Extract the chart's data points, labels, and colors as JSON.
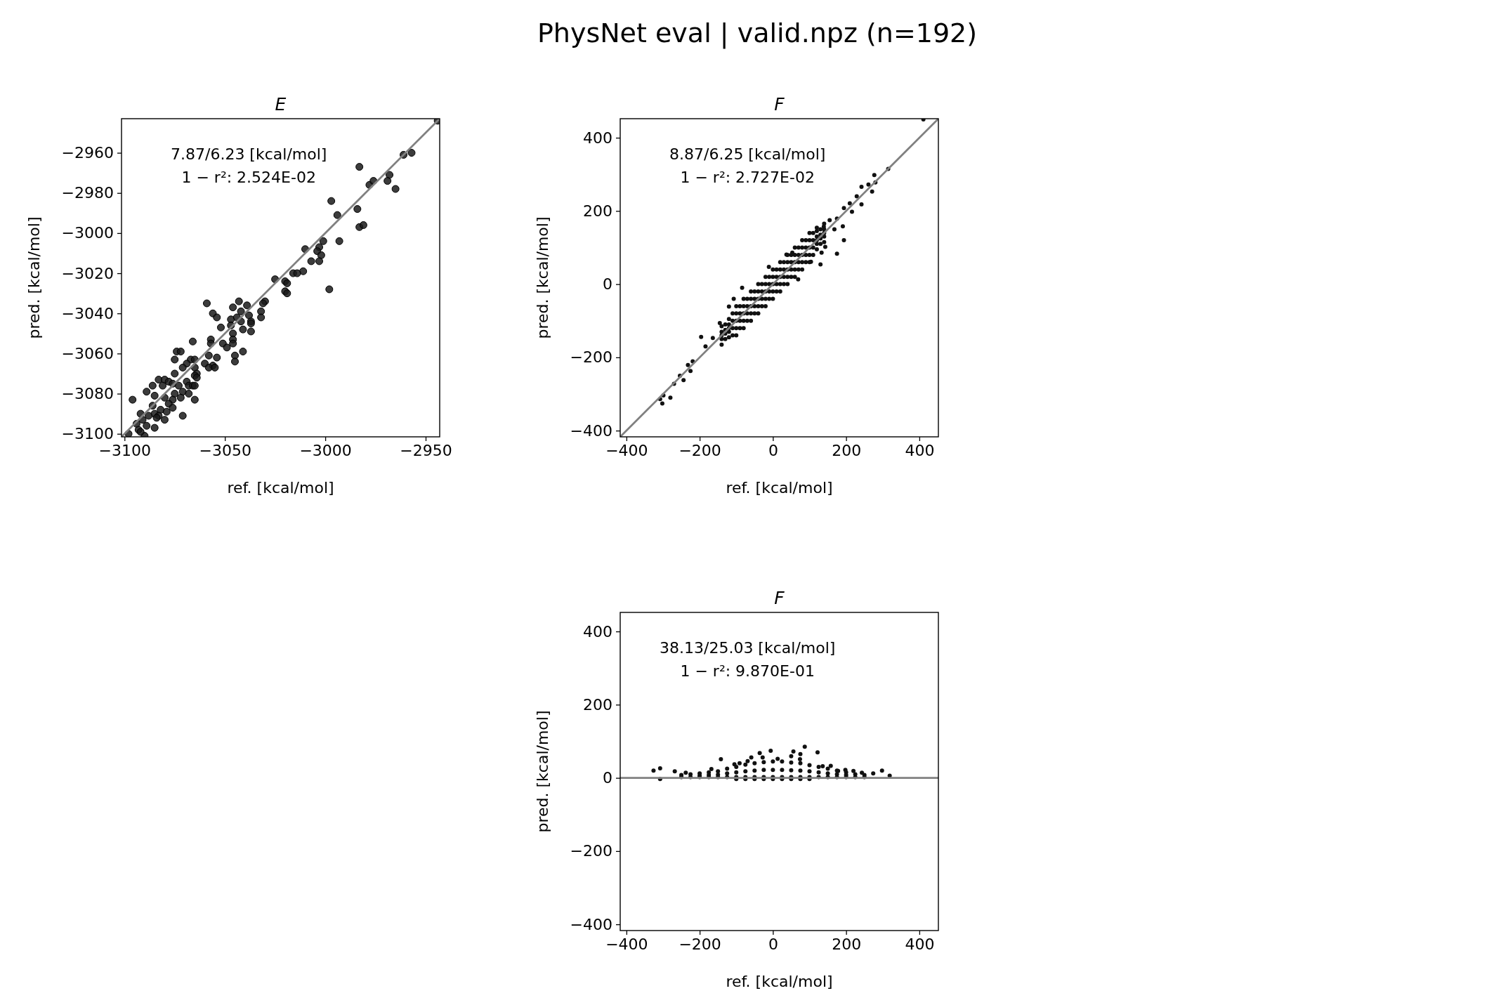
{
  "chart_data": [
    {
      "type": "scatter",
      "title": "E",
      "xlabel": "ref. [kcal/mol]",
      "ylabel": "pred. [kcal/mol]",
      "marker": "circle",
      "annotations": [
        "PhysNet eval | valid.npz (n=192)",
        "7.87/6.23 [kcal/mol]",
        "1 − r²: 2.524E-02"
      ],
      "xlim": [
        -3101.5,
        -2943
      ],
      "ylim": [
        -3101.5,
        -2943
      ],
      "xticks": [
        -3100,
        -3050,
        -3000,
        -2950
      ],
      "yticks": [
        -3100,
        -3080,
        -3060,
        -3040,
        -3020,
        -3000,
        -2980,
        -2960
      ],
      "series": [
        {
          "color": "#1a1a1a",
          "x": [
            -2944,
            -2961,
            -2957,
            -2983,
            -2968,
            -2969,
            -2978,
            -2976,
            -2965,
            -2997,
            -2984,
            -2994,
            -2983,
            -2981,
            -3001,
            -2993,
            -3010,
            -3003,
            -3004,
            -3002,
            -3007,
            -3003,
            -3011,
            -3016,
            -3014,
            -3025,
            -3020,
            -3019,
            -3020,
            -3019,
            -2998,
            -3059,
            -3043,
            -3039,
            -3030,
            -3031,
            -3046,
            -3032,
            -3042,
            -3056,
            -3054,
            -3038,
            -3032,
            -3047,
            -3044,
            -3037,
            -3037,
            -3047,
            -3042,
            -3052,
            -3041,
            -3046,
            -3037,
            -3057,
            -3046,
            -3066,
            -3051,
            -3049,
            -3046,
            -3057,
            -3041,
            -3045,
            -3074,
            -3072,
            -3058,
            -3054,
            -3075,
            -3045,
            -3067,
            -3065,
            -3069,
            -3060,
            -3056,
            -3058,
            -3055,
            -3071,
            -3065,
            -3075,
            -3064,
            -3065,
            -3064,
            -3083,
            -3080,
            -3078,
            -3069,
            -3076,
            -3068,
            -3086,
            -3081,
            -3073,
            -3066,
            -3065,
            -3071,
            -3089,
            -3085,
            -3075,
            -3068,
            -3072,
            -3065,
            -3096,
            -3080,
            -3076,
            -3078,
            -3076,
            -3086,
            -3082,
            -3085,
            -3092,
            -3079,
            -3088,
            -3083,
            -3071,
            -3091,
            -3084,
            -3080,
            -3094,
            -3089,
            -3085,
            -3093,
            -3098,
            -3090,
            -3092
          ],
          "values": [
            -2944,
            -2961,
            -2960,
            -2967,
            -2971,
            -2974,
            -2976,
            -2974,
            -2978,
            -2984,
            -2988,
            -2991,
            -2997,
            -2996,
            -3004,
            -3004,
            -3008,
            -3007,
            -3009,
            -3011,
            -3014,
            -3014,
            -3019,
            -3020,
            -3020,
            -3023,
            -3024,
            -3025,
            -3029,
            -3030,
            -3028,
            -3035,
            -3034,
            -3036,
            -3034,
            -3035,
            -3037,
            -3039,
            -3039,
            -3040,
            -3042,
            -3041,
            -3042,
            -3043,
            -3042,
            -3044,
            -3045,
            -3046,
            -3044,
            -3047,
            -3048,
            -3050,
            -3049,
            -3053,
            -3053,
            -3054,
            -3055,
            -3057,
            -3055,
            -3055,
            -3059,
            -3061,
            -3059,
            -3059,
            -3061,
            -3062,
            -3063,
            -3064,
            -3063,
            -3063,
            -3065,
            -3065,
            -3066,
            -3067,
            -3067,
            -3067,
            -3067,
            -3070,
            -3070,
            -3071,
            -3072,
            -3073,
            -3073,
            -3074,
            -3074,
            -3075,
            -3076,
            -3076,
            -3076,
            -3076,
            -3076,
            -3076,
            -3079,
            -3079,
            -3081,
            -3080,
            -3080,
            -3082,
            -3083,
            -3083,
            -3082,
            -3083,
            -3085,
            -3087,
            -3086,
            -3088,
            -3090,
            -3090,
            -3089,
            -3091,
            -3091,
            -3091,
            -3093,
            -3092,
            -3093,
            -3095,
            -3096,
            -3097,
            -3098,
            -3100,
            -3101,
            -3099
          ]
        },
        {
          "type": "line",
          "marker": "none",
          "color": "#808080",
          "x": [
            -3101.5,
            -2943
          ],
          "values": [
            -3101.5,
            -2943
          ]
        }
      ]
    },
    {
      "type": "scatter",
      "title": "F",
      "xlabel": "ref. [kcal/mol]",
      "ylabel": "pred. [kcal/mol]",
      "marker": "circle",
      "annotations": [
        "8.87/6.25 [kcal/mol]",
        "1 − r²: 2.727E-02"
      ],
      "xlim": [
        -417,
        452
      ],
      "ylim": [
        -417,
        452
      ],
      "xticks": [
        -400,
        -200,
        0,
        200,
        400
      ],
      "yticks": [
        -400,
        -200,
        0,
        200,
        400
      ],
      "series": [
        {
          "color": "#111111",
          "x": [
            411,
            315,
            277,
            280,
            271,
            261,
            242,
            242,
            229,
            210,
            216,
            194,
            191,
            168,
            175,
            194,
            175,
            155,
            139,
            120,
            143,
            130,
            133,
            104,
            69,
            37,
            53,
            -11,
            -84,
            -107,
            -120,
            -145,
            -196,
            -164,
            -184,
            -232,
            -219,
            -225,
            -254,
            -244,
            -270,
            -280,
            -302,
            -299,
            -308,
            -140,
            -140,
            -140,
            -140,
            -140,
            -120,
            -120,
            -120,
            -120,
            -120,
            -100,
            -100,
            -100,
            -100,
            -100,
            -80,
            -80,
            -80,
            -80,
            -80,
            -60,
            -60,
            -60,
            -60,
            -60,
            -40,
            -40,
            -40,
            -40,
            -40,
            -20,
            -20,
            -20,
            -20,
            -20,
            0,
            0,
            0,
            0,
            0,
            20,
            20,
            20,
            20,
            20,
            40,
            40,
            40,
            40,
            40,
            60,
            60,
            60,
            60,
            60,
            80,
            80,
            80,
            80,
            80,
            100,
            100,
            100,
            100,
            100,
            120,
            120,
            120,
            120,
            120,
            140,
            140,
            140,
            140,
            140,
            -130,
            -130,
            -130,
            -130,
            -110,
            -110,
            -110,
            -110,
            -90,
            -90,
            -90,
            -90,
            -70,
            -70,
            -70,
            -70,
            -50,
            -50,
            -50,
            -50,
            -30,
            -30,
            -30,
            -30,
            -10,
            -10,
            -10,
            -10,
            10,
            10,
            10,
            10,
            30,
            30,
            30,
            30,
            50,
            50,
            50,
            50,
            70,
            70,
            70,
            70,
            90,
            90,
            90,
            90,
            110,
            110,
            110,
            110,
            130,
            130,
            130,
            130
          ],
          "values": [
            450,
            315,
            298,
            278,
            253,
            272,
            266,
            218,
            240,
            221,
            198,
            208,
            158,
            150,
            179,
            120,
            83,
            175,
            157,
            154,
            102,
            54,
            86,
            61,
            13,
            81,
            86,
            47,
            -10,
            -40,
            -61,
            -106,
            -144,
            -147,
            -170,
            -221,
            -211,
            -237,
            -250,
            -262,
            -272,
            -310,
            -326,
            -304,
            -314,
            -165,
            -150,
            -140,
            -130,
            -115,
            -145,
            -130,
            -120,
            -110,
            -95,
            -140,
            -120,
            -100,
            -80,
            -60,
            -120,
            -100,
            -80,
            -60,
            -40,
            -100,
            -80,
            -60,
            -40,
            -20,
            -80,
            -60,
            -40,
            -20,
            0,
            -60,
            -40,
            -20,
            0,
            20,
            -40,
            -20,
            0,
            20,
            40,
            -20,
            0,
            20,
            40,
            60,
            0,
            20,
            40,
            60,
            80,
            20,
            40,
            60,
            80,
            100,
            40,
            60,
            80,
            100,
            120,
            60,
            80,
            100,
            120,
            140,
            95,
            110,
            120,
            130,
            145,
            115,
            130,
            140,
            150,
            165,
            -150,
            -135,
            -125,
            -110,
            -140,
            -120,
            -100,
            -80,
            -120,
            -100,
            -80,
            -60,
            -100,
            -80,
            -60,
            -40,
            -80,
            -60,
            -40,
            -20,
            -60,
            -40,
            -20,
            0,
            -40,
            -20,
            0,
            20,
            -20,
            0,
            20,
            40,
            0,
            20,
            40,
            60,
            20,
            40,
            60,
            80,
            40,
            60,
            80,
            100,
            60,
            80,
            100,
            120,
            80,
            100,
            120,
            140,
            110,
            125,
            135,
            150
          ]
        },
        {
          "type": "line",
          "marker": "none",
          "color": "#808080",
          "x": [
            -417,
            452
          ],
          "values": [
            -417,
            452
          ]
        }
      ]
    },
    {
      "type": "scatter",
      "title": "F",
      "xlabel": "ref. [kcal/mol]",
      "ylabel": "pred. [kcal/mol]",
      "marker": "circle",
      "annotations": [
        "38.13/25.03 [kcal/mol]",
        "1 − r²: 9.870E-01"
      ],
      "xlim": [
        -417,
        452
      ],
      "ylim": [
        -417,
        452
      ],
      "xticks": [
        -400,
        -200,
        0,
        200,
        400
      ],
      "yticks": [
        -400,
        -200,
        0,
        200,
        400
      ],
      "series": [
        {
          "color": "#111111",
          "x": [
            -326,
            -308,
            -268,
            -238,
            -142,
            -168,
            -105,
            -91,
            -69,
            -59,
            -36,
            -28,
            -6,
            13,
            50,
            56,
            75,
            87,
            74,
            122,
            136,
            158,
            178,
            198,
            220,
            243,
            274,
            298,
            319,
            -308,
            -250,
            -250,
            -225,
            -225,
            -200,
            -200,
            -200,
            -175,
            -175,
            -175,
            -150,
            -150,
            -150,
            -125,
            -125,
            -125,
            -100,
            -100,
            -100,
            -100,
            -75,
            -75,
            -75,
            -75,
            -50,
            -50,
            -50,
            -50,
            -25,
            -25,
            -25,
            -25,
            0,
            0,
            0,
            0,
            25,
            25,
            25,
            25,
            50,
            50,
            50,
            50,
            75,
            75,
            75,
            75,
            100,
            100,
            100,
            100,
            125,
            125,
            125,
            150,
            150,
            150,
            175,
            175,
            175,
            200,
            200,
            200,
            225,
            225,
            250,
            250
          ],
          "values": [
            20,
            26,
            18,
            14,
            51,
            24,
            37,
            40,
            46,
            56,
            68,
            56,
            74,
            52,
            59,
            72,
            65,
            85,
            51,
            70,
            32,
            33,
            19,
            22,
            19,
            14,
            12,
            20,
            6,
            -3,
            8,
            2,
            10,
            2,
            12,
            6,
            2,
            15,
            8,
            2,
            18,
            9,
            2,
            25,
            12,
            2,
            30,
            15,
            2,
            -3,
            36,
            18,
            2,
            -3,
            40,
            20,
            2,
            -3,
            43,
            22,
            2,
            -3,
            45,
            22,
            2,
            -3,
            45,
            22,
            2,
            -3,
            42,
            21,
            2,
            -3,
            40,
            20,
            2,
            -3,
            35,
            18,
            2,
            -3,
            30,
            15,
            2,
            25,
            12,
            2,
            20,
            10,
            2,
            15,
            8,
            2,
            10,
            2,
            8,
            2
          ]
        },
        {
          "type": "line",
          "marker": "none",
          "color": "#808080",
          "x": [
            -417,
            452
          ],
          "values": [
            0,
            0
          ]
        }
      ]
    }
  ]
}
